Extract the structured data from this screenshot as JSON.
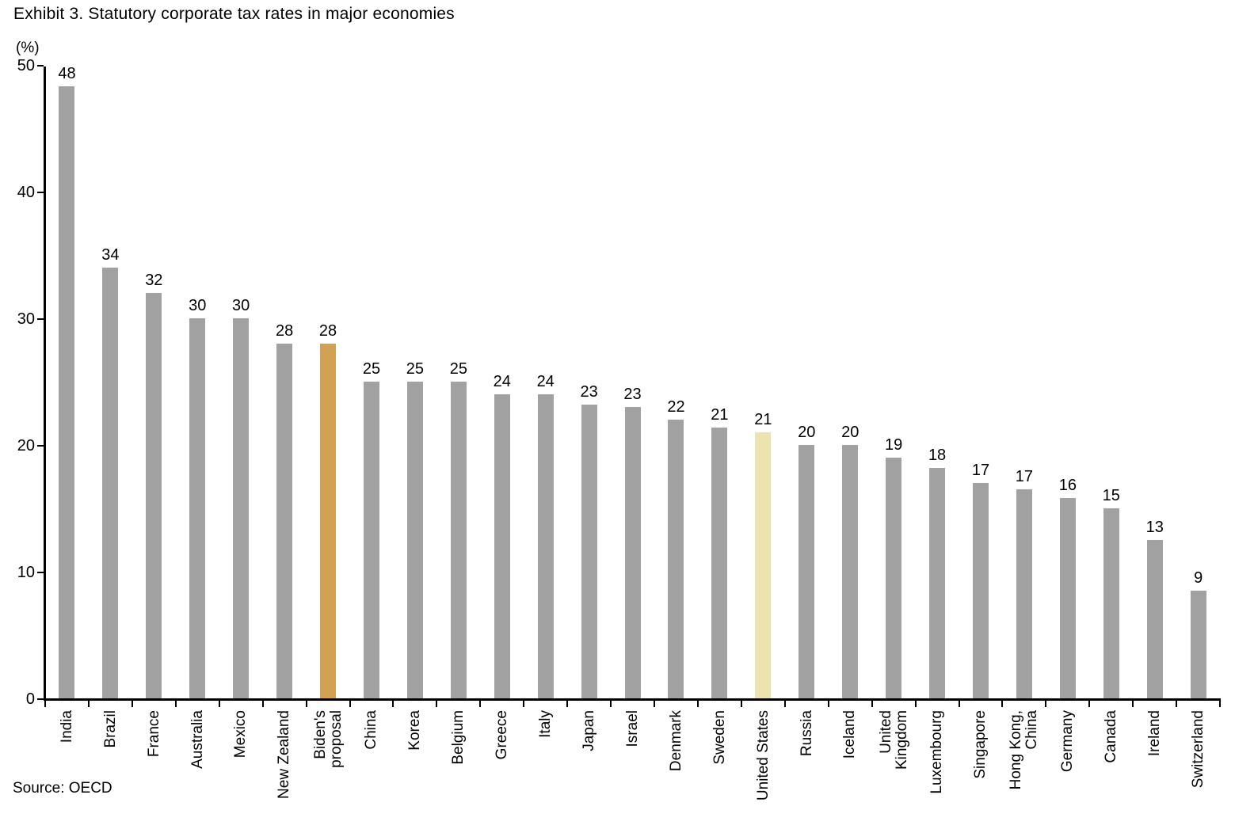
{
  "page": {
    "title": "Exhibit 3. Statutory corporate tax rates in major economies",
    "source": "Source: OECD"
  },
  "chart_data": {
    "type": "bar",
    "title": "Exhibit 3. Statutory corporate tax rates in major economies",
    "unit_label": "(%)",
    "xlabel": "",
    "ylabel": "(%)",
    "ylim": [
      0,
      50
    ],
    "yticks": [
      0,
      10,
      20,
      30,
      40,
      50
    ],
    "grid": false,
    "legend": null,
    "bar_colors": {
      "default": "#A2A2A2",
      "proposal": "#D0A252",
      "united_states": "#EDE3AE"
    },
    "bars": [
      {
        "label": "India",
        "value": 48.3,
        "display": "48",
        "color": "default"
      },
      {
        "label": "Brazil",
        "value": 34,
        "display": "34",
        "color": "default"
      },
      {
        "label": "France",
        "value": 32,
        "display": "32",
        "color": "default"
      },
      {
        "label": "Australia",
        "value": 30,
        "display": "30",
        "color": "default"
      },
      {
        "label": "Mexico",
        "value": 30,
        "display": "30",
        "color": "default"
      },
      {
        "label": "New Zealand",
        "value": 28,
        "display": "28",
        "color": "default"
      },
      {
        "label": "Biden's\nproposal",
        "value": 28,
        "display": "28",
        "color": "proposal"
      },
      {
        "label": "China",
        "value": 25,
        "display": "25",
        "color": "default"
      },
      {
        "label": "Korea",
        "value": 25,
        "display": "25",
        "color": "default"
      },
      {
        "label": "Belgium",
        "value": 25,
        "display": "25",
        "color": "default"
      },
      {
        "label": "Greece",
        "value": 24,
        "display": "24",
        "color": "default"
      },
      {
        "label": "Italy",
        "value": 24,
        "display": "24",
        "color": "default"
      },
      {
        "label": "Japan",
        "value": 23.2,
        "display": "23",
        "color": "default"
      },
      {
        "label": "Israel",
        "value": 23,
        "display": "23",
        "color": "default"
      },
      {
        "label": "Denmark",
        "value": 22,
        "display": "22",
        "color": "default"
      },
      {
        "label": "Sweden",
        "value": 21.4,
        "display": "21",
        "color": "default"
      },
      {
        "label": "United States",
        "value": 21,
        "display": "21",
        "color": "united_states"
      },
      {
        "label": "Russia",
        "value": 20,
        "display": "20",
        "color": "default"
      },
      {
        "label": "Iceland",
        "value": 20,
        "display": "20",
        "color": "default"
      },
      {
        "label": "United\nKingdom",
        "value": 19,
        "display": "19",
        "color": "default"
      },
      {
        "label": "Luxembourg",
        "value": 18.2,
        "display": "18",
        "color": "default"
      },
      {
        "label": "Singapore",
        "value": 17,
        "display": "17",
        "color": "default"
      },
      {
        "label": "Hong Kong,\nChina",
        "value": 16.5,
        "display": "17",
        "color": "default"
      },
      {
        "label": "Germany",
        "value": 15.8,
        "display": "16",
        "color": "default"
      },
      {
        "label": "Canada",
        "value": 15,
        "display": "15",
        "color": "default"
      },
      {
        "label": "Ireland",
        "value": 12.5,
        "display": "13",
        "color": "default"
      },
      {
        "label": "Switzerland",
        "value": 8.5,
        "display": "9",
        "color": "default"
      }
    ]
  }
}
